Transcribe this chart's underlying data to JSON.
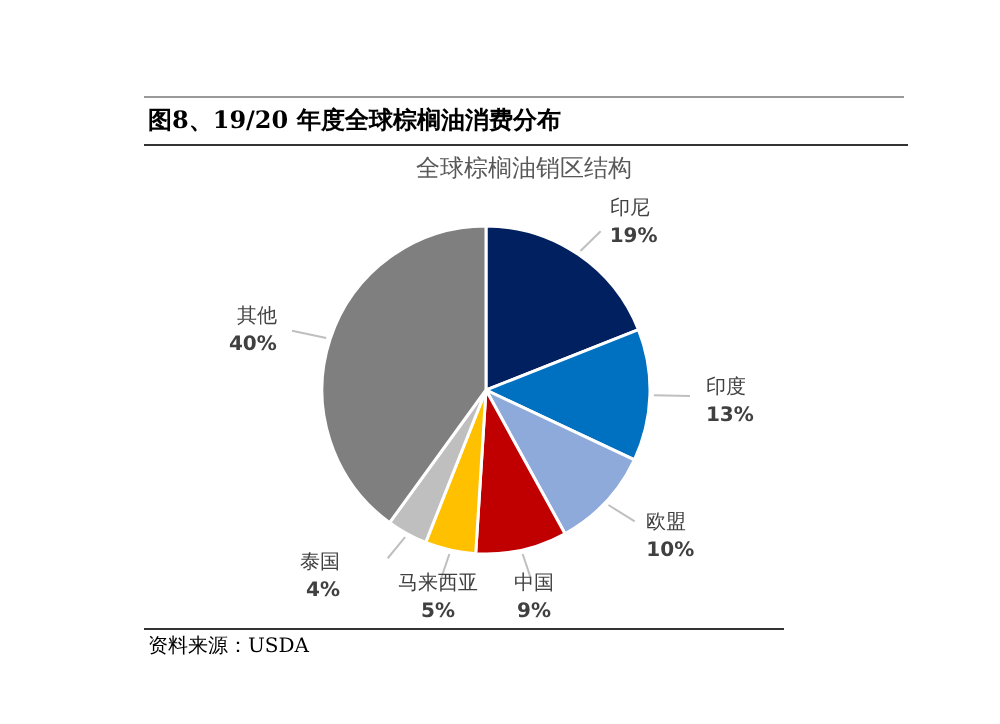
{
  "chart_data": {
    "type": "pie",
    "title": "图8、19/20 年度全球棕榈油消费分布",
    "subtitle": "全球棕榈油销区结构",
    "categories": [
      "印尼",
      "印度",
      "欧盟",
      "中国",
      "马来西亚",
      "泰国",
      "其他"
    ],
    "values": [
      19,
      13,
      10,
      9,
      5,
      4,
      40
    ],
    "colors": [
      "#002060",
      "#0070c0",
      "#8eaadb",
      "#c00000",
      "#ffc000",
      "#bfbfbf",
      "#7f7f7f"
    ],
    "value_labels": [
      "19%",
      "13%",
      "10%",
      "9%",
      "5%",
      "4%",
      "40%"
    ],
    "annotations": [
      "资料来源：USDA"
    ]
  }
}
